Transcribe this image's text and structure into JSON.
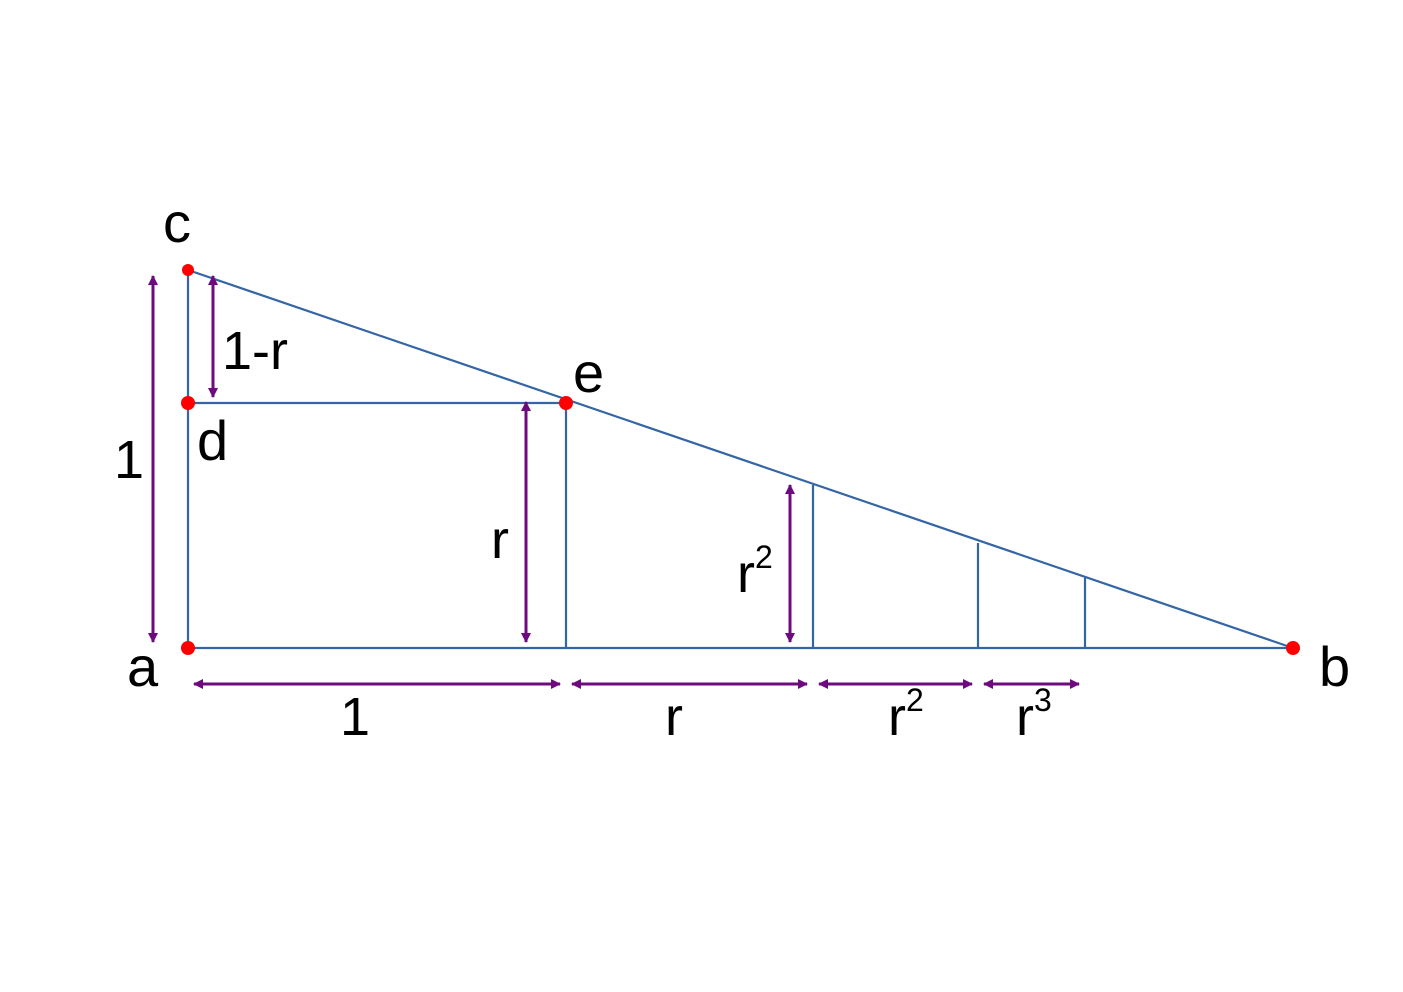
{
  "colors": {
    "line": "#3465a4",
    "dimension": "#6d0a7e",
    "point": "#ff0000",
    "text": "#000000",
    "background": "#ffffff"
  },
  "points": {
    "a": "a",
    "b": "b",
    "c": "c",
    "d": "d",
    "e": "e"
  },
  "vertical_labels": {
    "ac": "1",
    "cd": "1-r",
    "r_height": "r",
    "r2_height_base": "r",
    "r2_height_exp": "2"
  },
  "horizontal_labels": {
    "seg1": "1",
    "seg2": "r",
    "seg3_base": "r",
    "seg3_exp": "2",
    "seg4_base": "r",
    "seg4_exp": "3"
  }
}
